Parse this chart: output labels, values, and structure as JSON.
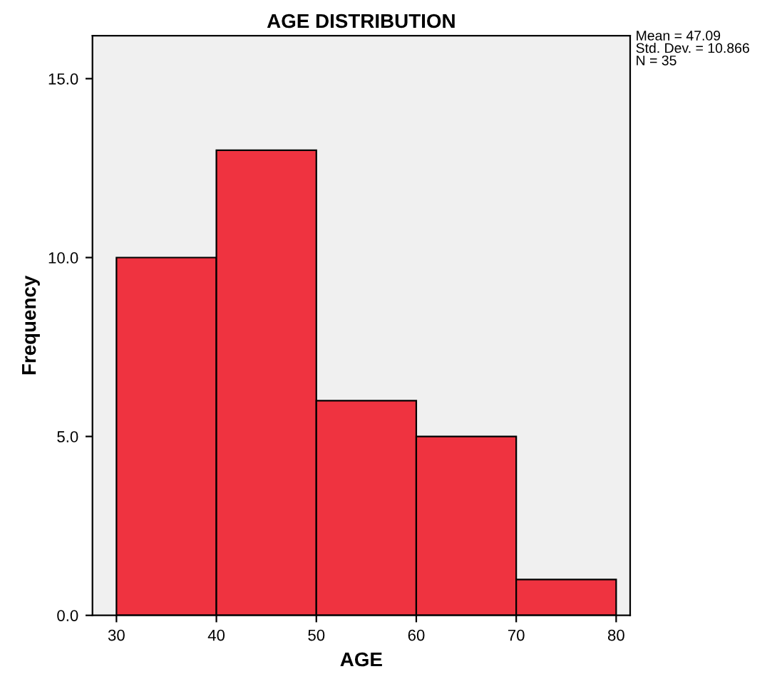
{
  "chart_data": {
    "type": "histogram",
    "title": "AGE DISTRIBUTION",
    "xlabel": "AGE",
    "ylabel": "Frequency",
    "bins": [
      30,
      40,
      50,
      60,
      70,
      80
    ],
    "values": [
      10,
      13,
      6,
      5,
      1
    ],
    "color": "#ef3340",
    "xlim": [
      27.6,
      81.4
    ],
    "ylim": [
      0,
      16.2
    ],
    "xticks": [
      30,
      40,
      50,
      60,
      70,
      80
    ],
    "yticks": [
      {
        "value": 0,
        "label": "0.0"
      },
      {
        "value": 5,
        "label": "5.0"
      },
      {
        "value": 10,
        "label": "10.0"
      },
      {
        "value": 15,
        "label": "15.0"
      }
    ],
    "annotations": [
      "Mean = 47.09\nStd. Dev. = 10.866\nN = 35"
    ],
    "grid": false,
    "legend": false
  }
}
